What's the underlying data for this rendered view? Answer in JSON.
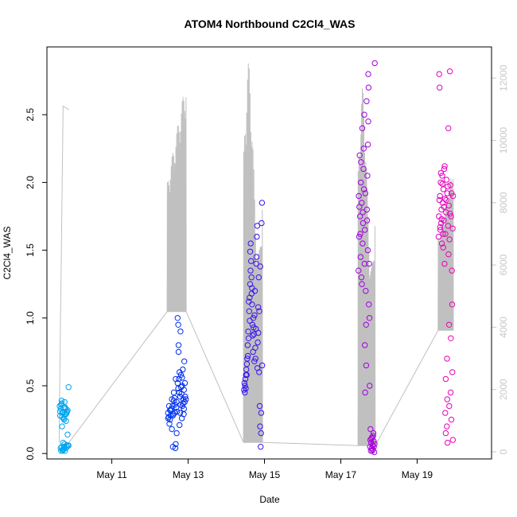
{
  "chart_data": {
    "type": "scatter",
    "title": "ATOM4 Northbound C2Cl4_WAS",
    "xlabel": "Date",
    "ylabel": "C2Cl4_WAS",
    "xlim": [
      9.3,
      20.95
    ],
    "ylim": [
      -0.04,
      3.0
    ],
    "x_ticks": [
      11,
      13,
      15,
      17,
      19
    ],
    "x_tick_labels": [
      "May 11",
      "May 13",
      "May 15",
      "May 17",
      "May 19"
    ],
    "y_ticks": [
      0.0,
      0.5,
      1.0,
      1.5,
      2.0,
      2.5
    ],
    "y_tick_labels": [
      "0.0",
      "0.5",
      "1.0",
      "1.5",
      "2.0",
      "2.5"
    ],
    "y2lim": [
      -230,
      13000
    ],
    "y2_ticks": [
      0,
      2000,
      4000,
      6000,
      8000,
      10000,
      12000
    ],
    "y2_tick_labels": [
      "0",
      "2000",
      "4000",
      "6000",
      "8000",
      "10000",
      "12000"
    ],
    "color_scale": [
      "#00aaee",
      "#0022ee",
      "#7a00ee",
      "#ee00bb"
    ],
    "altitude_color": "#c0c0c0",
    "flights": [
      {
        "date": "May 9",
        "x": [
          9.62,
          9.88
        ],
        "baseline": 300,
        "peak": 11100,
        "pattern": "early_climb",
        "obs": [
          [
            0.35,
            0.3
          ],
          [
            0.25,
            0.05
          ],
          [
            0.45,
            0.03
          ],
          [
            0.15,
            0.33
          ],
          [
            0.55,
            0.38
          ],
          [
            0.65,
            0.04
          ],
          [
            0.3,
            0.27
          ],
          [
            0.75,
            0.06
          ],
          [
            0.4,
            0.31
          ],
          [
            0.85,
            0.32
          ],
          [
            0.2,
            0.36
          ],
          [
            0.5,
            0.05
          ],
          [
            0.1,
            0.28
          ],
          [
            0.6,
            0.34
          ],
          [
            0.35,
            0.02
          ],
          [
            0.95,
            0.49
          ],
          [
            0.7,
            0.29
          ],
          [
            0.25,
            0.37
          ],
          [
            0.8,
            0.31
          ],
          [
            0.05,
            0.35
          ],
          [
            0.45,
            0.26
          ],
          [
            0.55,
            0.07
          ],
          [
            0.15,
            0.04
          ],
          [
            0.65,
            0.33
          ],
          [
            0.9,
            0.06
          ],
          [
            0.3,
            0.2
          ],
          [
            0.5,
            0.25
          ],
          [
            0.75,
            0.3
          ],
          [
            0.4,
            0.08
          ],
          [
            0.6,
            0.02
          ],
          [
            0.85,
            0.14
          ],
          [
            0.2,
            0.02
          ],
          [
            0.7,
            0.24
          ],
          [
            0.95,
            0.06
          ],
          [
            0.1,
            0.31
          ],
          [
            0.45,
            0.34
          ],
          [
            0.35,
            0.03
          ],
          [
            0.55,
            0.29
          ],
          [
            0.25,
            0.39
          ],
          [
            0.8,
            0.05
          ]
        ]
      },
      {
        "date": "May 12",
        "x": [
          12.45,
          12.95
        ],
        "baseline": 4500,
        "peak": 12000,
        "pattern": "rising",
        "obs": [
          [
            0.05,
            0.3
          ],
          [
            0.1,
            0.35
          ],
          [
            0.15,
            0.25
          ],
          [
            0.2,
            0.32
          ],
          [
            0.25,
            0.4
          ],
          [
            0.3,
            0.28
          ],
          [
            0.35,
            0.45
          ],
          [
            0.4,
            0.3
          ],
          [
            0.45,
            0.55
          ],
          [
            0.5,
            0.38
          ],
          [
            0.55,
            1.0
          ],
          [
            0.58,
            0.95
          ],
          [
            0.6,
            0.8
          ],
          [
            0.62,
            0.55
          ],
          [
            0.65,
            0.6
          ],
          [
            0.68,
            0.42
          ],
          [
            0.7,
            0.36
          ],
          [
            0.72,
            0.58
          ],
          [
            0.75,
            0.44
          ],
          [
            0.78,
            0.5
          ],
          [
            0.8,
            0.35
          ],
          [
            0.82,
            0.62
          ],
          [
            0.85,
            0.4
          ],
          [
            0.88,
            0.47
          ],
          [
            0.9,
            0.68
          ],
          [
            0.92,
            0.38
          ],
          [
            0.95,
            0.42
          ],
          [
            0.3,
            0.05
          ],
          [
            0.45,
            0.07
          ],
          [
            0.5,
            0.15
          ],
          [
            0.12,
            0.22
          ],
          [
            0.22,
            0.33
          ],
          [
            0.33,
            0.29
          ],
          [
            0.42,
            0.36
          ],
          [
            0.52,
            0.31
          ],
          [
            0.63,
            0.45
          ],
          [
            0.73,
            0.49
          ],
          [
            0.83,
            0.37
          ],
          [
            0.93,
            0.52
          ],
          [
            0.18,
            0.28
          ],
          [
            0.38,
            0.41
          ],
          [
            0.48,
            0.34
          ],
          [
            0.58,
            0.48
          ],
          [
            0.68,
            0.3
          ],
          [
            0.78,
            0.56
          ],
          [
            0.88,
            0.33
          ],
          [
            0.98,
            0.4
          ],
          [
            0.08,
            0.27
          ],
          [
            0.28,
            0.35
          ],
          [
            0.43,
            0.04
          ],
          [
            0.6,
            0.75
          ],
          [
            0.7,
            0.9
          ],
          [
            0.65,
            0.21
          ],
          [
            0.77,
            0.26
          ],
          [
            0.87,
            0.29
          ],
          [
            0.55,
            0.52
          ],
          [
            0.35,
            0.39
          ],
          [
            0.25,
            0.18
          ],
          [
            0.15,
            0.32
          ],
          [
            0.05,
            0.26
          ]
        ]
      },
      {
        "date": "May 14",
        "x": [
          14.45,
          14.95
        ],
        "baseline": 300,
        "peak": 12500,
        "pattern": "spiky",
        "obs": [
          [
            0.03,
            0.47
          ],
          [
            0.05,
            0.52
          ],
          [
            0.07,
            0.45
          ],
          [
            0.1,
            0.55
          ],
          [
            0.12,
            0.48
          ],
          [
            0.15,
            0.62
          ],
          [
            0.17,
            0.58
          ],
          [
            0.2,
            0.7
          ],
          [
            0.22,
            0.8
          ],
          [
            0.25,
            0.9
          ],
          [
            0.27,
            0.85
          ],
          [
            0.3,
            1.05
          ],
          [
            0.32,
            1.15
          ],
          [
            0.35,
            1.25
          ],
          [
            0.37,
            1.35
          ],
          [
            0.4,
            1.42
          ],
          [
            0.42,
            1.3
          ],
          [
            0.45,
            1.1
          ],
          [
            0.47,
            0.95
          ],
          [
            0.5,
            0.75
          ],
          [
            0.52,
            1.0
          ],
          [
            0.55,
            0.88
          ],
          [
            0.57,
            0.68
          ],
          [
            0.6,
            1.2
          ],
          [
            0.62,
            0.78
          ],
          [
            0.65,
            0.92
          ],
          [
            0.67,
            1.4
          ],
          [
            0.7,
            1.6
          ],
          [
            0.72,
            1.68
          ],
          [
            0.75,
            0.82
          ],
          [
            0.77,
            1.08
          ],
          [
            0.8,
            1.3
          ],
          [
            0.82,
            0.6
          ],
          [
            0.85,
            0.35
          ],
          [
            0.87,
            0.2
          ],
          [
            0.9,
            0.05
          ],
          [
            0.92,
            0.15
          ],
          [
            0.95,
            1.7
          ],
          [
            0.97,
            1.85
          ],
          [
            0.98,
            0.65
          ],
          [
            0.08,
            0.5
          ],
          [
            0.13,
            0.58
          ],
          [
            0.18,
            0.66
          ],
          [
            0.23,
            0.72
          ],
          [
            0.28,
            1.12
          ],
          [
            0.33,
            0.98
          ],
          [
            0.38,
            1.55
          ],
          [
            0.43,
            1.18
          ],
          [
            0.48,
            0.87
          ],
          [
            0.53,
            0.93
          ],
          [
            0.58,
            1.02
          ],
          [
            0.63,
            0.7
          ],
          [
            0.68,
            1.45
          ],
          [
            0.73,
            0.63
          ],
          [
            0.78,
            0.89
          ],
          [
            0.83,
            1.05
          ],
          [
            0.88,
            1.38
          ],
          [
            0.93,
            0.3
          ],
          [
            0.35,
            1.49
          ],
          [
            0.45,
            1.22
          ]
        ]
      },
      {
        "date": "May 17",
        "x": [
          17.45,
          17.9
        ],
        "baseline": 200,
        "peak": 11700,
        "pattern": "spiky",
        "obs": [
          [
            0.03,
            1.35
          ],
          [
            0.05,
            1.9
          ],
          [
            0.07,
            1.6
          ],
          [
            0.1,
            2.2
          ],
          [
            0.12,
            1.75
          ],
          [
            0.15,
            1.45
          ],
          [
            0.17,
            2.0
          ],
          [
            0.2,
            1.3
          ],
          [
            0.22,
            1.85
          ],
          [
            0.25,
            2.4
          ],
          [
            0.27,
            1.55
          ],
          [
            0.3,
            1.7
          ],
          [
            0.32,
            2.1
          ],
          [
            0.35,
            1.95
          ],
          [
            0.37,
            2.5
          ],
          [
            0.4,
            1.65
          ],
          [
            0.42,
            0.45
          ],
          [
            0.45,
            1.2
          ],
          [
            0.47,
            0.95
          ],
          [
            0.5,
            2.6
          ],
          [
            0.52,
            1.8
          ],
          [
            0.55,
            2.05
          ],
          [
            0.57,
            1.5
          ],
          [
            0.6,
            2.8
          ],
          [
            0.62,
            2.7
          ],
          [
            0.65,
            1.4
          ],
          [
            0.67,
            1.0
          ],
          [
            0.7,
            0.05
          ],
          [
            0.72,
            0.1
          ],
          [
            0.75,
            0.02
          ],
          [
            0.77,
            0.08
          ],
          [
            0.8,
            0.04
          ],
          [
            0.82,
            0.12
          ],
          [
            0.85,
            0.06
          ],
          [
            0.87,
            0.03
          ],
          [
            0.9,
            0.15
          ],
          [
            0.92,
            0.09
          ],
          [
            0.95,
            0.01
          ],
          [
            0.97,
            0.07
          ],
          [
            0.98,
            2.88
          ],
          [
            0.08,
            1.82
          ],
          [
            0.13,
            1.62
          ],
          [
            0.18,
            2.15
          ],
          [
            0.23,
            1.25
          ],
          [
            0.28,
            1.78
          ],
          [
            0.33,
            2.25
          ],
          [
            0.38,
            1.4
          ],
          [
            0.43,
            1.92
          ],
          [
            0.48,
            0.65
          ],
          [
            0.53,
            1.72
          ],
          [
            0.58,
            2.28
          ],
          [
            0.63,
            1.1
          ],
          [
            0.68,
            0.5
          ],
          [
            0.73,
            0.18
          ],
          [
            0.78,
            0.11
          ],
          [
            0.83,
            0.02
          ],
          [
            0.88,
            0.13
          ],
          [
            0.93,
            0.05
          ],
          [
            0.4,
            0.8
          ],
          [
            0.6,
            2.45
          ]
        ]
      },
      {
        "date": "May 19",
        "x": [
          19.55,
          19.95
        ],
        "baseline": 3900,
        "peak": 9200,
        "pattern": "rising",
        "obs": [
          [
            0.03,
            1.6
          ],
          [
            0.05,
            1.75
          ],
          [
            0.07,
            2.8
          ],
          [
            0.1,
            2.7
          ],
          [
            0.12,
            1.9
          ],
          [
            0.15,
            1.65
          ],
          [
            0.17,
            2.0
          ],
          [
            0.2,
            1.7
          ],
          [
            0.22,
            1.8
          ],
          [
            0.25,
            1.55
          ],
          [
            0.27,
            2.05
          ],
          [
            0.3,
            1.85
          ],
          [
            0.32,
            1.62
          ],
          [
            0.35,
            1.95
          ],
          [
            0.37,
            1.72
          ],
          [
            0.4,
            2.1
          ],
          [
            0.42,
            1.4
          ],
          [
            0.45,
            1.88
          ],
          [
            0.47,
            0.3
          ],
          [
            0.5,
            0.55
          ],
          [
            0.52,
            1.78
          ],
          [
            0.55,
            2.02
          ],
          [
            0.57,
            0.2
          ],
          [
            0.6,
            1.92
          ],
          [
            0.62,
            0.08
          ],
          [
            0.65,
            1.68
          ],
          [
            0.67,
            2.4
          ],
          [
            0.7,
            1.83
          ],
          [
            0.72,
            0.95
          ],
          [
            0.75,
            1.58
          ],
          [
            0.77,
            2.82
          ],
          [
            0.8,
            1.98
          ],
          [
            0.82,
            0.45
          ],
          [
            0.85,
            1.75
          ],
          [
            0.87,
            0.25
          ],
          [
            0.9,
            1.35
          ],
          [
            0.92,
            1.1
          ],
          [
            0.95,
            1.66
          ],
          [
            0.97,
            0.1
          ],
          [
            0.98,
            1.9
          ],
          [
            0.08,
            1.87
          ],
          [
            0.13,
            1.67
          ],
          [
            0.18,
            2.07
          ],
          [
            0.23,
            1.73
          ],
          [
            0.28,
            1.99
          ],
          [
            0.33,
            1.52
          ],
          [
            0.38,
            1.82
          ],
          [
            0.43,
            2.12
          ],
          [
            0.48,
            1.62
          ],
          [
            0.53,
            1.87
          ],
          [
            0.58,
            0.7
          ],
          [
            0.63,
            1.97
          ],
          [
            0.68,
            1.47
          ],
          [
            0.73,
            0.35
          ],
          [
            0.78,
            1.77
          ],
          [
            0.83,
            0.85
          ],
          [
            0.88,
            1.92
          ],
          [
            0.93,
            0.6
          ],
          [
            0.5,
            0.15
          ],
          [
            0.6,
            0.4
          ]
        ]
      }
    ]
  }
}
